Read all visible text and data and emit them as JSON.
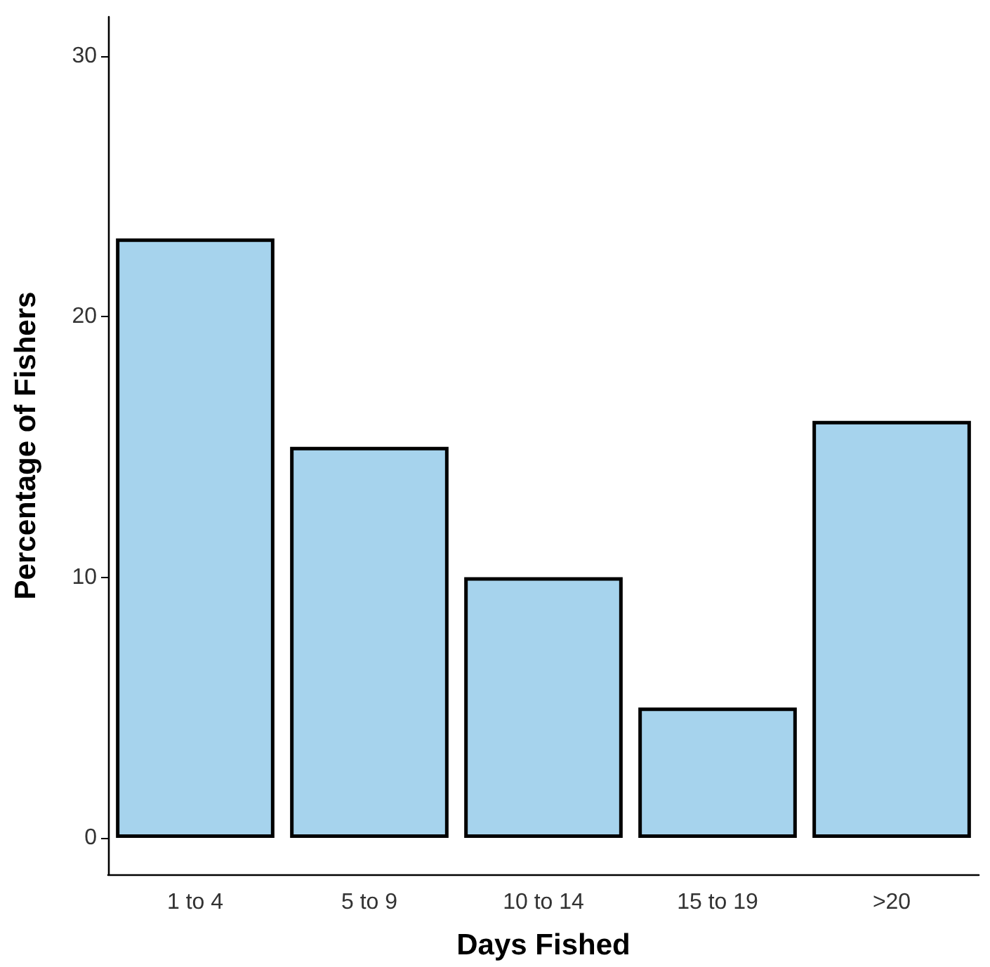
{
  "chart_data": {
    "type": "bar",
    "xlabel": "Days Fished",
    "ylabel": "Percentage of Fishers",
    "categories": [
      "1 to 4",
      "5 to 9",
      "10 to 14",
      "15 to 19",
      ">20"
    ],
    "values": [
      23,
      15,
      10,
      5,
      16
    ],
    "color": "#a6d3ed",
    "ylim": [
      -1.4,
      31.5
    ],
    "yticks": [
      0,
      10,
      20,
      30
    ],
    "grid": false
  }
}
